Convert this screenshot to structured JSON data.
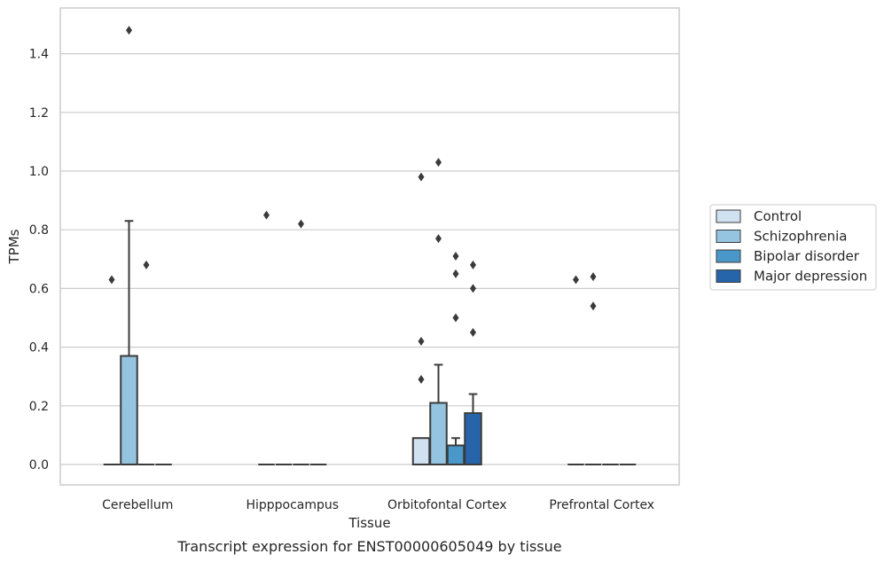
{
  "chart_data": {
    "type": "box",
    "title": "",
    "caption": "Transcript expression for ENST00000605049 by tissue",
    "xlabel": "Tissue",
    "ylabel": "TPMs",
    "ylim": [
      -0.07,
      1.55
    ],
    "yticks": [
      0.0,
      0.2,
      0.4,
      0.6,
      0.8,
      1.0,
      1.2,
      1.4
    ],
    "ytick_labels": [
      "0.0",
      "0.2",
      "0.4",
      "0.6",
      "0.8",
      "1.0",
      "1.2",
      "1.4"
    ],
    "categories": [
      "Cerebellum",
      "Hipppocampus",
      "Orbitofontal Cortex",
      "Prefrontal Cortex"
    ],
    "grid": "horizontal",
    "legend_position": "right",
    "series": [
      {
        "name": "Control",
        "color": "#d0e1f2",
        "boxes": [
          {
            "q1": 0,
            "median": 0,
            "q3": 0,
            "whislo": 0,
            "whishi": 0,
            "fliers": [
              0.63
            ]
          },
          {
            "q1": 0,
            "median": 0,
            "q3": 0,
            "whislo": 0,
            "whishi": 0,
            "fliers": [
              0.85
            ]
          },
          {
            "q1": 0,
            "median": 0,
            "q3": 0.09,
            "whislo": 0,
            "whishi": 0.09,
            "fliers": [
              0.98,
              0.42,
              0.29
            ]
          },
          {
            "q1": 0,
            "median": 0,
            "q3": 0,
            "whislo": 0,
            "whishi": 0,
            "fliers": [
              0.63
            ]
          }
        ]
      },
      {
        "name": "Schizophrenia",
        "color": "#94c4df",
        "boxes": [
          {
            "q1": 0,
            "median": 0,
            "q3": 0.37,
            "whislo": 0,
            "whishi": 0.83,
            "fliers": [
              1.48
            ]
          },
          {
            "q1": 0,
            "median": 0,
            "q3": 0,
            "whislo": 0,
            "whishi": 0,
            "fliers": []
          },
          {
            "q1": 0,
            "median": 0,
            "q3": 0.21,
            "whislo": 0,
            "whishi": 0.34,
            "fliers": [
              1.03,
              0.77
            ]
          },
          {
            "q1": 0,
            "median": 0,
            "q3": 0,
            "whislo": 0,
            "whishi": 0,
            "fliers": [
              0.64,
              0.54
            ]
          }
        ]
      },
      {
        "name": "Bipolar disorder",
        "color": "#4a98c9",
        "boxes": [
          {
            "q1": 0,
            "median": 0,
            "q3": 0,
            "whislo": 0,
            "whishi": 0,
            "fliers": [
              0.68
            ]
          },
          {
            "q1": 0,
            "median": 0,
            "q3": 0,
            "whislo": 0,
            "whishi": 0,
            "fliers": [
              0.82
            ]
          },
          {
            "q1": 0,
            "median": 0,
            "q3": 0.065,
            "whislo": 0,
            "whishi": 0.09,
            "fliers": [
              0.71,
              0.65,
              0.5
            ]
          },
          {
            "q1": 0,
            "median": 0,
            "q3": 0,
            "whislo": 0,
            "whishi": 0,
            "fliers": []
          }
        ]
      },
      {
        "name": "Major depression",
        "color": "#2765ab",
        "boxes": [
          {
            "q1": 0,
            "median": 0,
            "q3": 0,
            "whislo": 0,
            "whishi": 0,
            "fliers": []
          },
          {
            "q1": 0,
            "median": 0,
            "q3": 0,
            "whislo": 0,
            "whishi": 0,
            "fliers": []
          },
          {
            "q1": 0,
            "median": 0,
            "q3": 0.175,
            "whislo": 0,
            "whishi": 0.24,
            "fliers": [
              0.68,
              0.6,
              0.45
            ]
          },
          {
            "q1": 0,
            "median": 0,
            "q3": 0,
            "whislo": 0,
            "whishi": 0,
            "fliers": []
          }
        ]
      }
    ]
  }
}
